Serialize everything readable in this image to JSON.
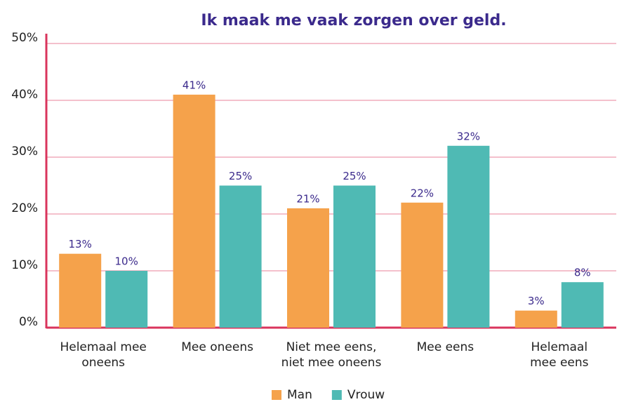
{
  "chart_data": {
    "type": "bar",
    "title": "Ik maak me vaak zorgen over geld.",
    "categories": [
      "Helemaal mee\noneens",
      "Mee oneens",
      "Niet mee eens,\nniet mee oneens",
      "Mee eens",
      "Helemaal\nmee eens"
    ],
    "series": [
      {
        "name": "Man",
        "color": "#f5a24b",
        "values": [
          13,
          41,
          21,
          22,
          3
        ],
        "value_labels": [
          "13%",
          "41%",
          "21%",
          "22%",
          "3%"
        ]
      },
      {
        "name": "Vrouw",
        "color": "#4fbab4",
        "values": [
          10,
          25,
          25,
          32,
          8
        ],
        "value_labels": [
          "10%",
          "25%",
          "25%",
          "32%",
          "8%"
        ]
      }
    ],
    "ylim": [
      0,
      50
    ],
    "yticks": [
      {
        "value": 0,
        "label": "0%"
      },
      {
        "value": 10,
        "label": "10%"
      },
      {
        "value": 20,
        "label": "20%"
      },
      {
        "value": 30,
        "label": "30%"
      },
      {
        "value": 40,
        "label": "40%"
      },
      {
        "value": 50,
        "label": "50%"
      }
    ],
    "grid": true,
    "legend": "bottom"
  }
}
